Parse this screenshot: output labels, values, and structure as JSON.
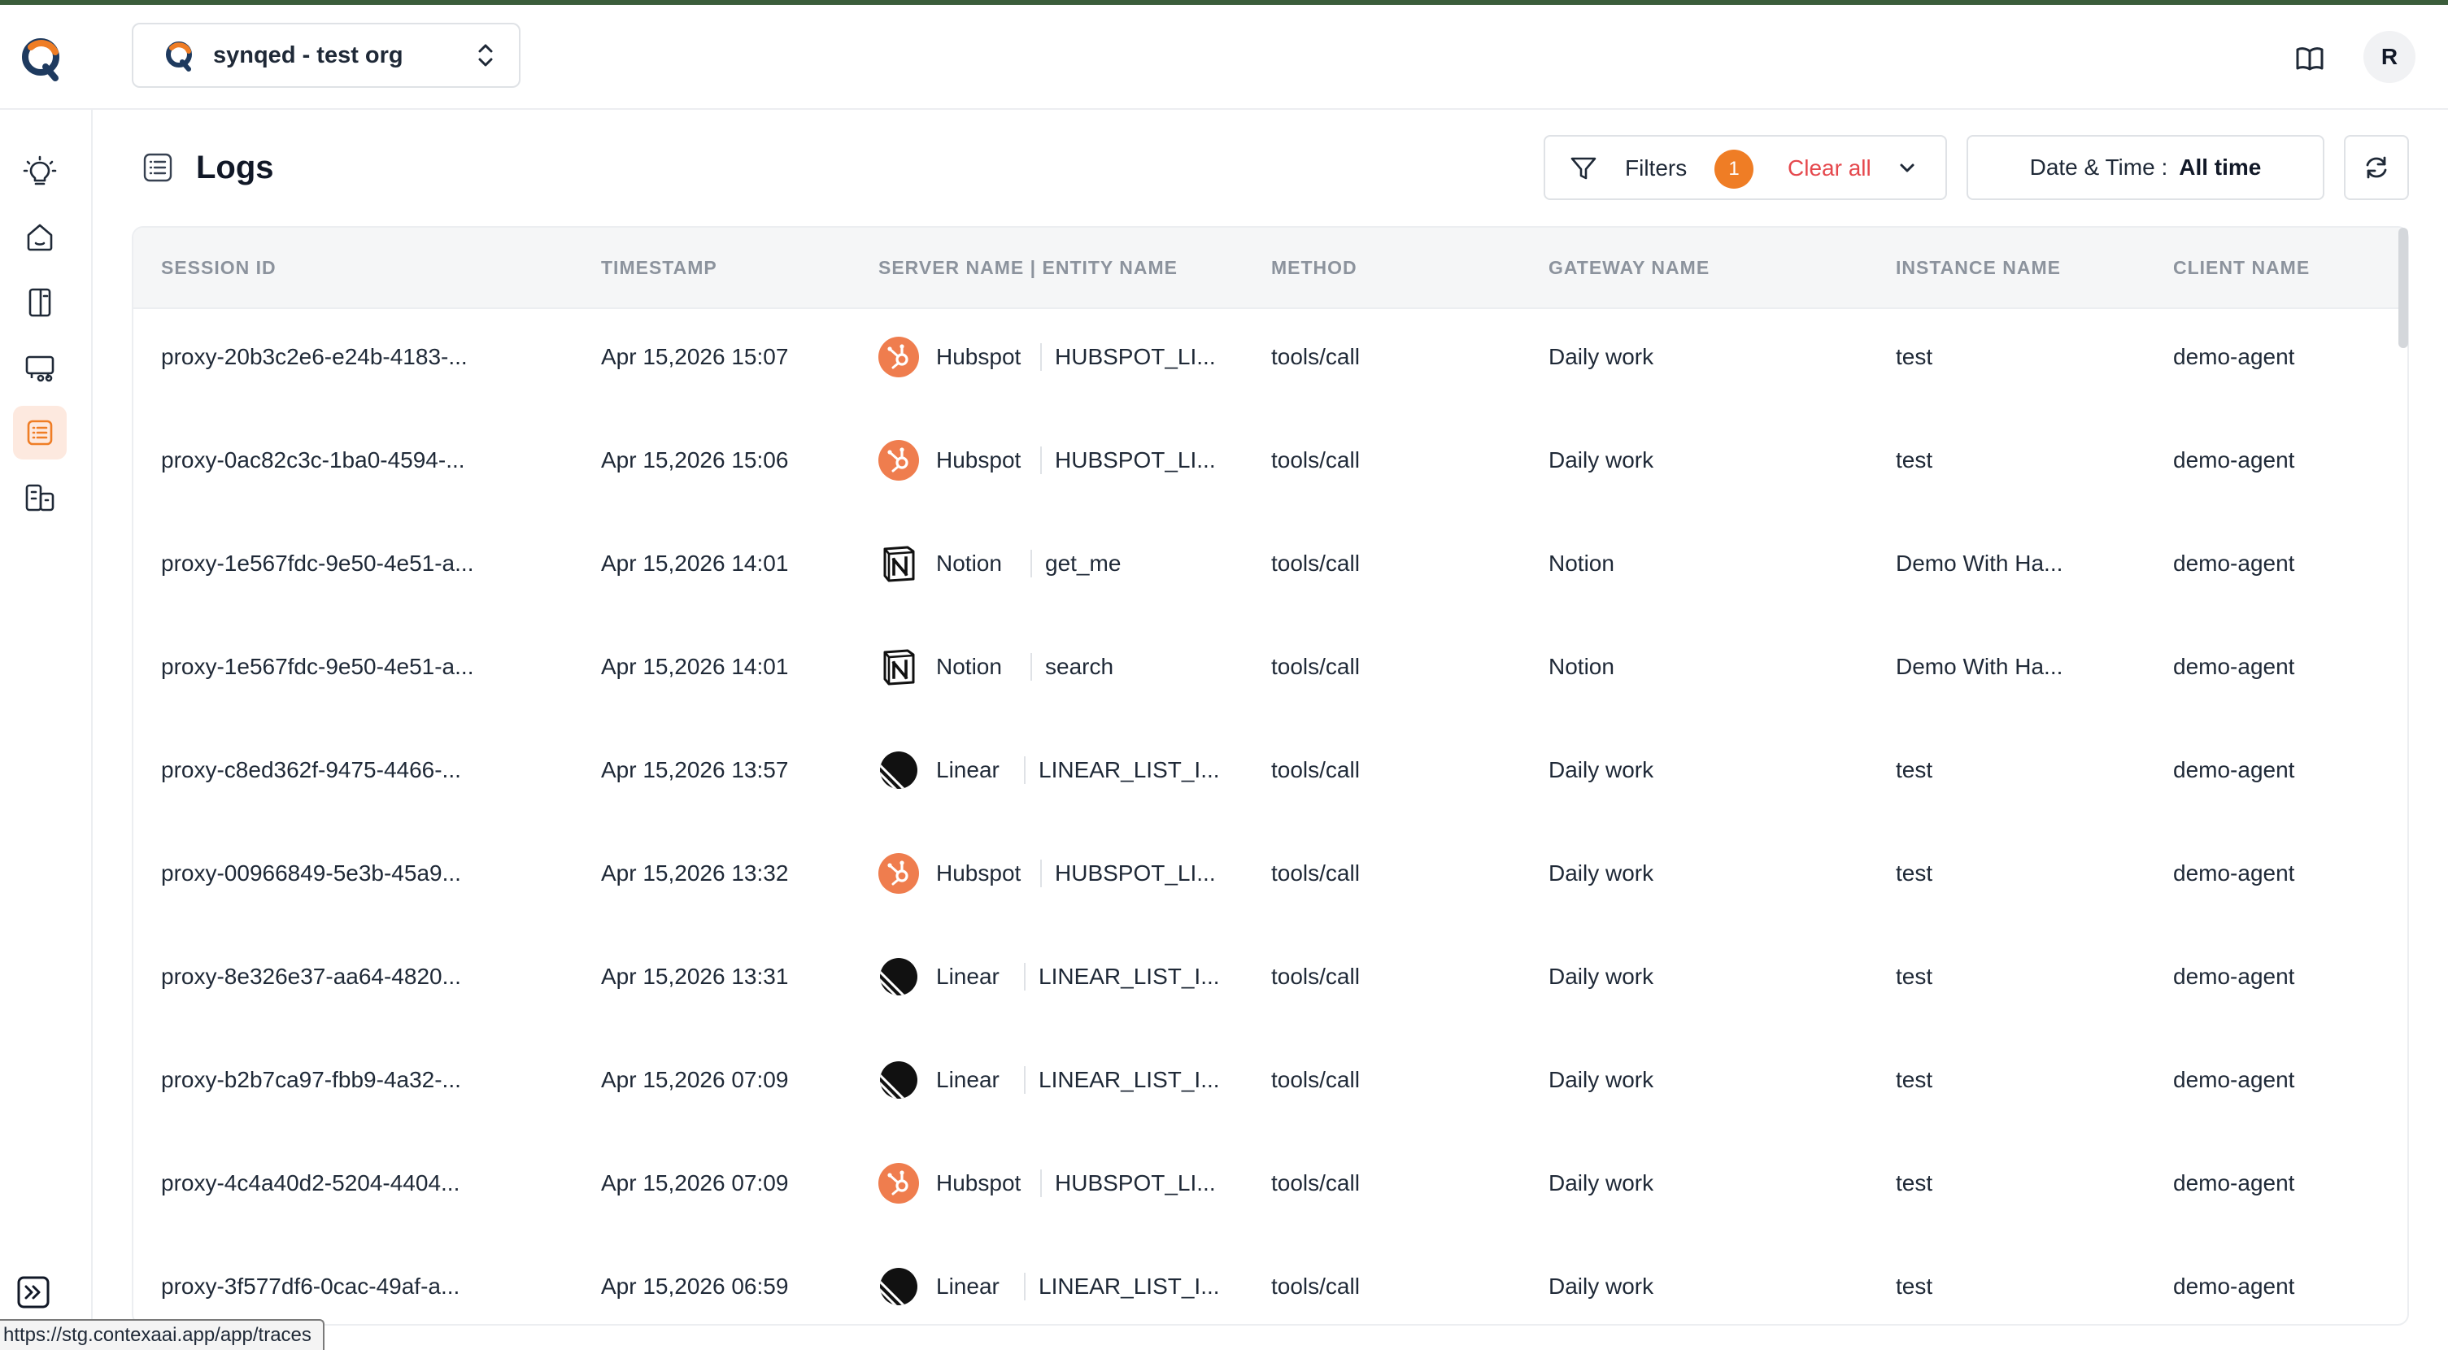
{
  "header": {
    "org_name": "synqed - test org",
    "avatar_initial": "R"
  },
  "sidebar": {
    "items": [
      {
        "icon": "lightbulb-icon",
        "active": false
      },
      {
        "icon": "home-icon",
        "active": false
      },
      {
        "icon": "book-icon",
        "active": false
      },
      {
        "icon": "cart-icon",
        "active": false
      },
      {
        "icon": "logs-list-icon",
        "active": true
      },
      {
        "icon": "building-icon",
        "active": false
      }
    ]
  },
  "page": {
    "title": "Logs"
  },
  "toolbar": {
    "filters_label": "Filters",
    "filters_count": "1",
    "clear_all_label": "Clear all",
    "date_label": "Date & Time :",
    "date_value": "All time"
  },
  "table": {
    "columns": [
      "SESSION ID",
      "TIMESTAMP",
      "SERVER NAME | ENTITY NAME",
      "METHOD",
      "GATEWAY NAME",
      "INSTANCE NAME",
      "CLIENT NAME"
    ],
    "rows": [
      {
        "session": "proxy-20b3c2e6-e24b-4183-...",
        "timestamp": "Apr 15,2026 15:07",
        "server": "Hubspot",
        "server_icon": "hubspot",
        "entity": "HUBSPOT_LI...",
        "method": "tools/call",
        "gateway": "Daily work",
        "instance": "test",
        "client": "demo-agent"
      },
      {
        "session": "proxy-0ac82c3c-1ba0-4594-...",
        "timestamp": "Apr 15,2026 15:06",
        "server": "Hubspot",
        "server_icon": "hubspot",
        "entity": "HUBSPOT_LI...",
        "method": "tools/call",
        "gateway": "Daily work",
        "instance": "test",
        "client": "demo-agent"
      },
      {
        "session": "proxy-1e567fdc-9e50-4e51-a...",
        "timestamp": "Apr 15,2026 14:01",
        "server": "Notion",
        "server_icon": "notion",
        "entity": "get_me",
        "method": "tools/call",
        "gateway": "Notion",
        "instance": "Demo With Ha...",
        "client": "demo-agent"
      },
      {
        "session": "proxy-1e567fdc-9e50-4e51-a...",
        "timestamp": "Apr 15,2026 14:01",
        "server": "Notion",
        "server_icon": "notion",
        "entity": "search",
        "method": "tools/call",
        "gateway": "Notion",
        "instance": "Demo With Ha...",
        "client": "demo-agent"
      },
      {
        "session": "proxy-c8ed362f-9475-4466-...",
        "timestamp": "Apr 15,2026 13:57",
        "server": "Linear",
        "server_icon": "linear",
        "entity": "LINEAR_LIST_I...",
        "method": "tools/call",
        "gateway": "Daily work",
        "instance": "test",
        "client": "demo-agent"
      },
      {
        "session": "proxy-00966849-5e3b-45a9...",
        "timestamp": "Apr 15,2026 13:32",
        "server": "Hubspot",
        "server_icon": "hubspot",
        "entity": "HUBSPOT_LI...",
        "method": "tools/call",
        "gateway": "Daily work",
        "instance": "test",
        "client": "demo-agent"
      },
      {
        "session": "proxy-8e326e37-aa64-4820...",
        "timestamp": "Apr 15,2026 13:31",
        "server": "Linear",
        "server_icon": "linear",
        "entity": "LINEAR_LIST_I...",
        "method": "tools/call",
        "gateway": "Daily work",
        "instance": "test",
        "client": "demo-agent"
      },
      {
        "session": "proxy-b2b7ca97-fbb9-4a32-...",
        "timestamp": "Apr 15,2026 07:09",
        "server": "Linear",
        "server_icon": "linear",
        "entity": "LINEAR_LIST_I...",
        "method": "tools/call",
        "gateway": "Daily work",
        "instance": "test",
        "client": "demo-agent"
      },
      {
        "session": "proxy-4c4a40d2-5204-4404...",
        "timestamp": "Apr 15,2026 07:09",
        "server": "Hubspot",
        "server_icon": "hubspot",
        "entity": "HUBSPOT_LI...",
        "method": "tools/call",
        "gateway": "Daily work",
        "instance": "test",
        "client": "demo-agent"
      },
      {
        "session": "proxy-3f577df6-0cac-49af-a...",
        "timestamp": "Apr 15,2026 06:59",
        "server": "Linear",
        "server_icon": "linear",
        "entity": "LINEAR_LIST_I...",
        "method": "tools/call",
        "gateway": "Daily work",
        "instance": "test",
        "client": "demo-agent"
      }
    ]
  },
  "status_bar": {
    "url": "https://stg.contexaai.app/app/traces"
  },
  "colors": {
    "accent": "#ef7d25",
    "danger": "#e5484d",
    "active_nav_bg": "#fde9df",
    "top_line": "#3b5d3b"
  }
}
